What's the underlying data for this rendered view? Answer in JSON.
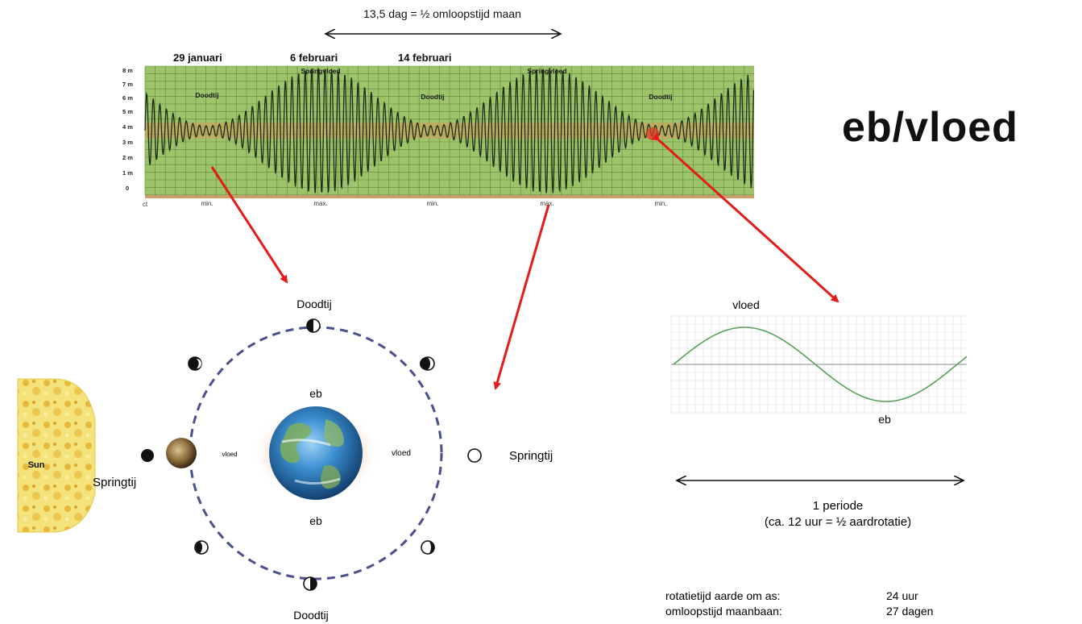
{
  "title": "eb/vloed",
  "tide_chart": {
    "span_label": "13,5 dag = ½ omloopstijd maan",
    "dates": [
      "29 januari",
      "6 februari",
      "14 februari"
    ],
    "y_ticks": [
      "8 m",
      "7 m",
      "6 m",
      "5 m",
      "4 m",
      "3 m",
      "2 m",
      "1 m",
      "0"
    ],
    "inner_labels": [
      "Doodtij",
      "Springvloed",
      "Doodtij",
      "Springvloed",
      "Doodtij"
    ],
    "bottom_labels": [
      "min.",
      "max.",
      "min.",
      "max.",
      "min."
    ],
    "corner_label": "ct"
  },
  "moon_diagram": {
    "top_label": "Doodtij",
    "bottom_label": "Doodtij",
    "left_label": "Springtij",
    "right_label": "Springtij",
    "sun_label": "Sun",
    "eb_top": "eb",
    "eb_bottom": "eb",
    "vloed_left": "vloed",
    "vloed_right": "vloed"
  },
  "wave_chart": {
    "vloed_label": "vloed",
    "eb_label": "eb",
    "period_line1": "1 periode",
    "period_line2": "(ca. 12 uur = ½ aardrotatie)"
  },
  "facts": [
    {
      "label": "rotatietijd aarde om as:",
      "value": "24 uur"
    },
    {
      "label": "omloopstijd maanbaan:",
      "value": "27 dagen"
    }
  ],
  "colors": {
    "chart_bg": "#9dc46b",
    "tide_line": "#1c2b12",
    "arrow_red": "#e31b1b",
    "orbit": "#4b4f8c",
    "wave": "#5aa05a"
  }
}
